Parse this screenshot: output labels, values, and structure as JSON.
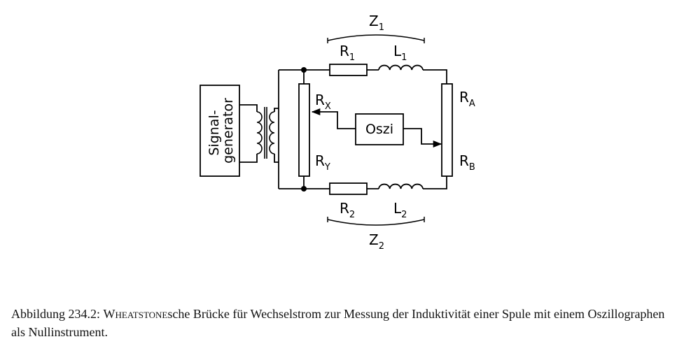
{
  "diagram": {
    "impedance_top": {
      "main": "Z",
      "sub": "1"
    },
    "impedance_bottom": {
      "main": "Z",
      "sub": "2"
    },
    "r1": {
      "main": "R",
      "sub": "1"
    },
    "l1": {
      "main": "L",
      "sub": "1"
    },
    "r2": {
      "main": "R",
      "sub": "2"
    },
    "l2": {
      "main": "L",
      "sub": "2"
    },
    "rx": {
      "main": "R",
      "sub": "X"
    },
    "ry": {
      "main": "R",
      "sub": "Y"
    },
    "ra": {
      "main": "R",
      "sub": "A"
    },
    "rb": {
      "main": "R",
      "sub": "B"
    },
    "oscilloscope": "Oszi",
    "generator_line1": "Signal-",
    "generator_line2": "generator"
  },
  "caption": {
    "label": "Abbildung 234.2: ",
    "name": "Wheatstone",
    "text": "sche Brücke für Wechselstrom zur Messung der Induktivität einer Spule mit einem Oszillographen als Nullinstrument."
  }
}
